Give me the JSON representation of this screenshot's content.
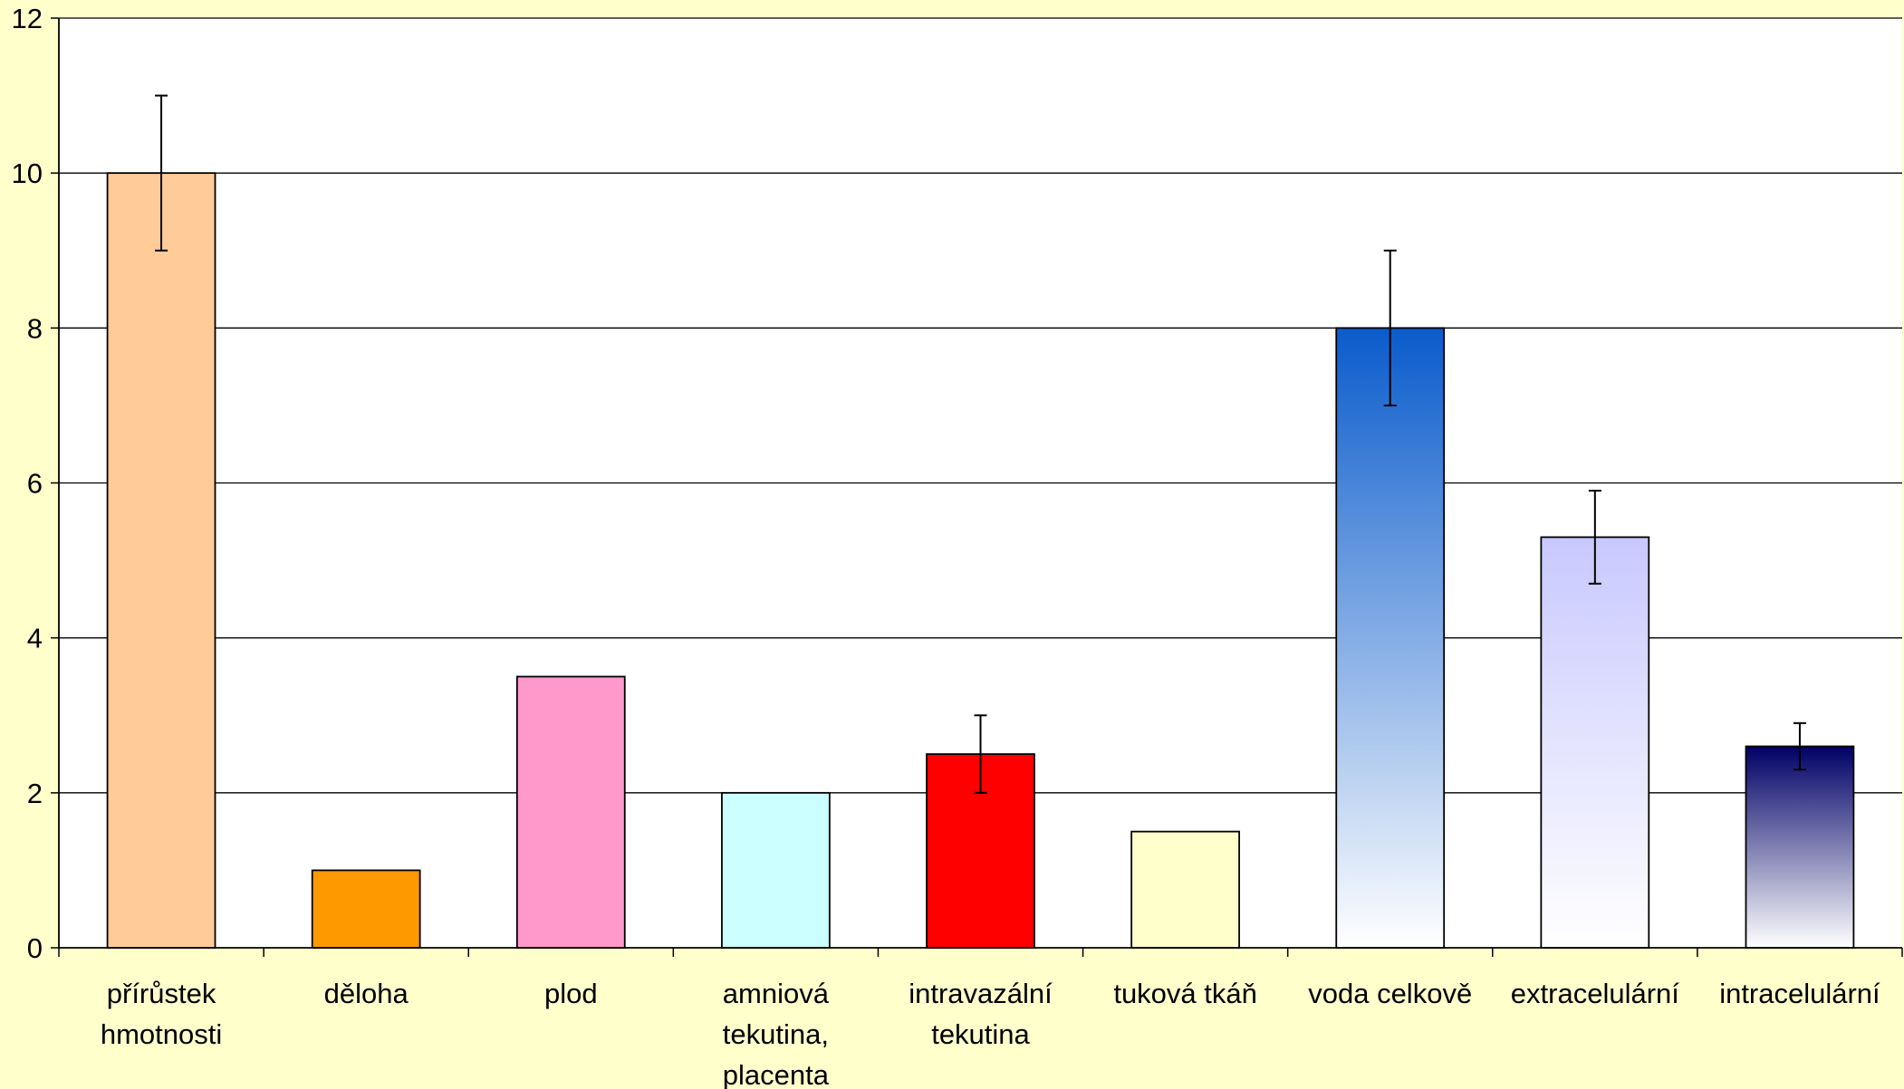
{
  "chart_data": {
    "type": "bar",
    "title": "",
    "xlabel": "",
    "ylabel": "",
    "ylim": [
      0,
      12
    ],
    "yticks": [
      0,
      2,
      4,
      6,
      8,
      10,
      12
    ],
    "grid": true,
    "legend": "none",
    "categories": [
      [
        "přírůstek",
        "hmotnosti"
      ],
      [
        "děloha"
      ],
      [
        "plod"
      ],
      [
        "amniová",
        "tekutina,",
        "placenta"
      ],
      [
        "intravazální",
        "tekutina"
      ],
      [
        "tuková tkáň"
      ],
      [
        "voda celkově"
      ],
      [
        "extracelulární"
      ],
      [
        "intracelulární"
      ]
    ],
    "values": [
      10,
      1,
      3.5,
      2,
      2.5,
      1.5,
      8,
      5.3,
      2.6
    ],
    "error_bars": [
      [
        9,
        11
      ],
      null,
      null,
      null,
      [
        2,
        3
      ],
      null,
      [
        7,
        9
      ],
      [
        4.7,
        5.9
      ],
      [
        2.3,
        2.9
      ]
    ],
    "colors": [
      {
        "solid": "#FFCC99"
      },
      {
        "solid": "#FF9900"
      },
      {
        "solid": "#FF99CC"
      },
      {
        "solid": "#CCFFFF"
      },
      {
        "solid": "#FF0000"
      },
      {
        "solid": "#FFFFCC"
      },
      {
        "gradient": [
          "#0A5BCC",
          "#FFFFFF"
        ]
      },
      {
        "gradient": [
          "#C8C8FF",
          "#FFFFFF"
        ]
      },
      {
        "gradient": [
          "#000066",
          "#FFFFFF"
        ]
      }
    ],
    "plot_background": "#FFFFFF",
    "page_background": "#FFFFCC"
  }
}
